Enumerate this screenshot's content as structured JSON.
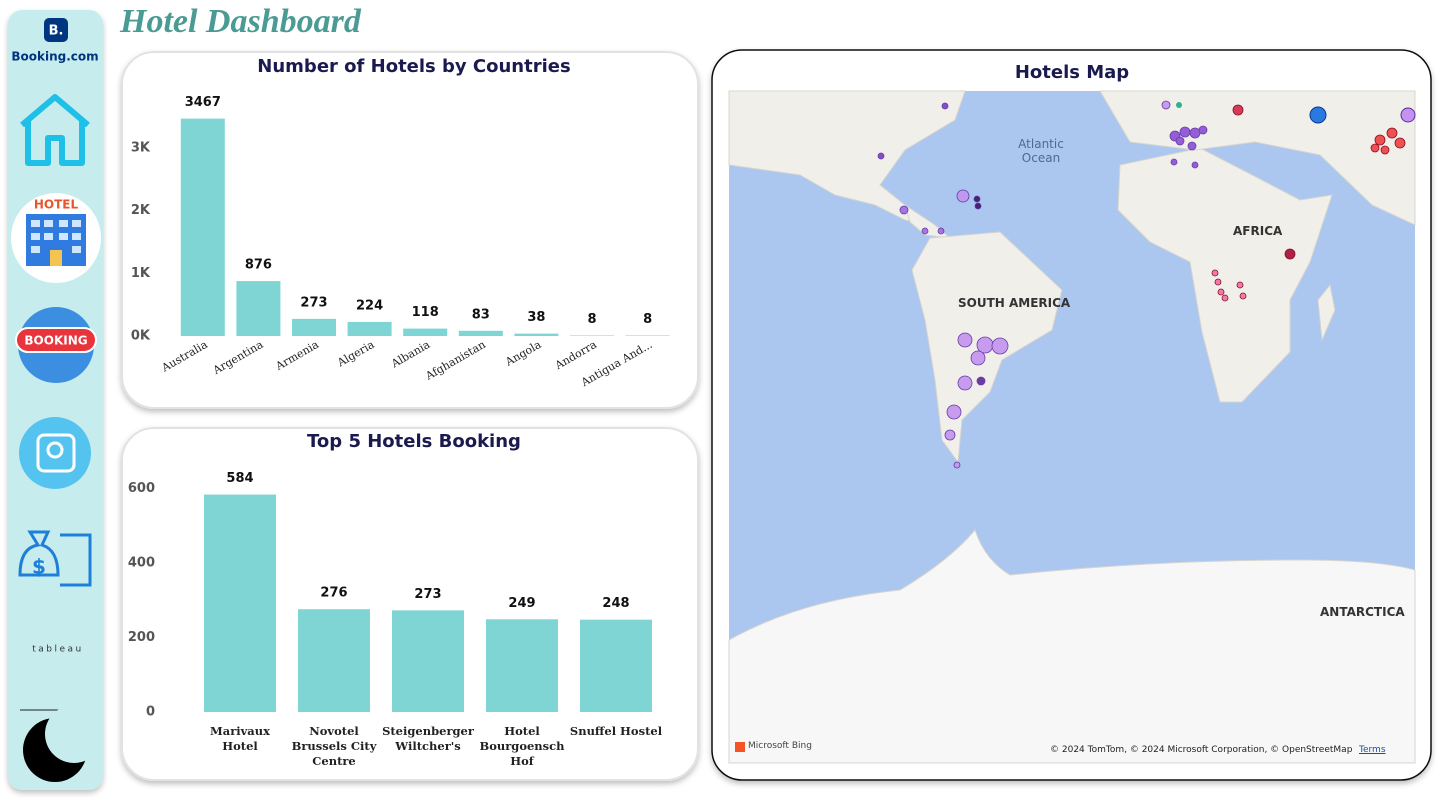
{
  "title": "Hotel Dashboard",
  "sidebar": {
    "logo_mark": "B.",
    "logo": "Booking.com",
    "hotel_icon": "HOTEL",
    "booking_icon": "BOOKING",
    "tableau": "tableau"
  },
  "chart_data": [
    {
      "type": "bar",
      "title": "Number of Hotels by Countries",
      "categories": [
        "Australia",
        "Argentina",
        "Armenia",
        "Algeria",
        "Albania",
        "Afghanistan",
        "Angola",
        "Andorra",
        "Antigua And..."
      ],
      "values": [
        3467,
        876,
        273,
        224,
        118,
        83,
        38,
        8,
        8
      ],
      "color": "#7fd5d4",
      "ylim": [
        0,
        3700
      ],
      "yticks": [
        {
          "value": 0,
          "label": "0K"
        },
        {
          "value": 1000,
          "label": "1K"
        },
        {
          "value": 2000,
          "label": "2K"
        },
        {
          "value": 3000,
          "label": "3K"
        }
      ]
    },
    {
      "type": "bar",
      "title": "Top 5 Hotels Booking",
      "categories": [
        "Marivaux Hotel",
        "Novotel Brussels City Centre",
        "Steigenberger Wiltcher's",
        "Hotel Bourgoensch Hof",
        "Snuffel Hostel"
      ],
      "values": [
        584,
        276,
        273,
        249,
        248
      ],
      "color": "#7fd5d4",
      "ylim": [
        0,
        650
      ],
      "yticks": [
        0,
        200,
        400,
        600
      ]
    }
  ],
  "map": {
    "title": "Hotels Map",
    "ocean": "Atlantic Ocean",
    "south_america": "SOUTH AMERICA",
    "africa": "AFRICA",
    "antarctica": "ANTARCTICA",
    "attribution": "Microsoft Bing",
    "copyright": "© 2024 TomTom, © 2024 Microsoft Corporation, © OpenStreetMap",
    "terms": "Terms"
  }
}
